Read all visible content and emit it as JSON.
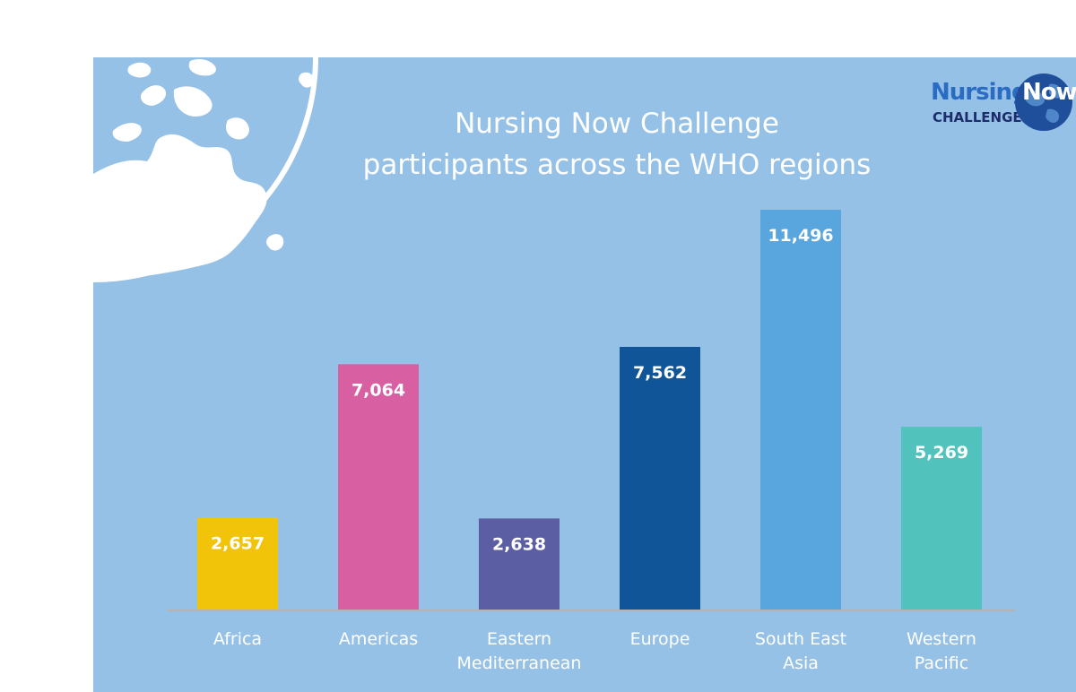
{
  "chart_data": {
    "type": "bar",
    "title_lines": [
      "Nursing Now Challenge",
      "participants across the WHO regions"
    ],
    "categories": [
      [
        "Africa"
      ],
      [
        "Americas"
      ],
      [
        "Eastern",
        "Mediterranean"
      ],
      [
        "Europe"
      ],
      [
        "South East",
        "Asia"
      ],
      [
        "Western",
        "Pacific"
      ]
    ],
    "values": [
      2657,
      7064,
      2638,
      7562,
      11496,
      5269
    ],
    "value_labels": [
      "2,657",
      "7,064",
      "2,638",
      "7,562",
      "11,496",
      "5,269"
    ],
    "colors": [
      "#f1c40a",
      "#d85fa2",
      "#5b5ea2",
      "#0f5598",
      "#58a6dd",
      "#52c3bc"
    ],
    "xlabel": "",
    "ylabel": "",
    "ylim": [
      0,
      12000
    ],
    "grid": false,
    "legend": "none"
  },
  "logo": {
    "word1": "Nursing",
    "word2": "Now",
    "sub": "CHALLENGE"
  },
  "colors": {
    "background": "#96c1e7",
    "globe": "#ffffff",
    "baseline": "#b4b4b4"
  }
}
